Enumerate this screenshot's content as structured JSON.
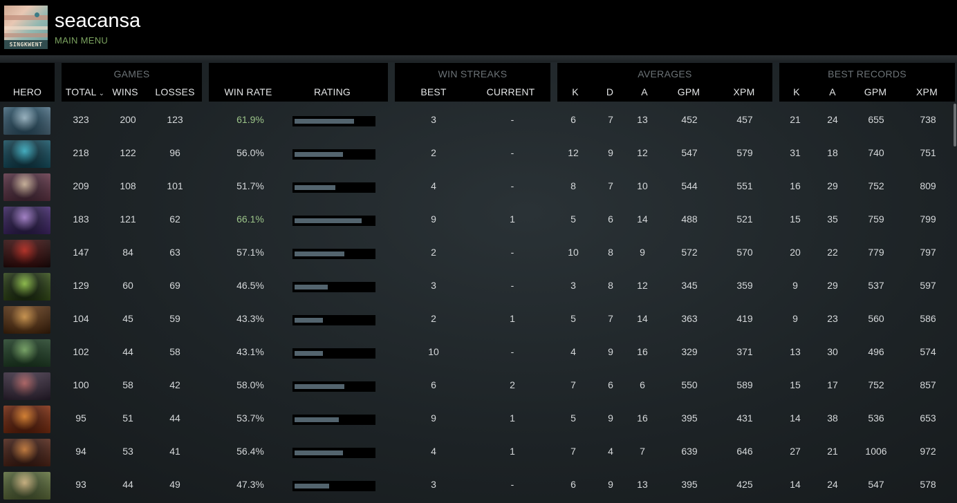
{
  "profile": {
    "username": "seacansa",
    "menu_link": "MAIN MENU",
    "avatar_text": "SINGKWENT"
  },
  "groups": {
    "games": "GAMES",
    "win_streaks": "WIN STREAKS",
    "averages": "AVERAGES",
    "best_records": "BEST RECORDS"
  },
  "headers": {
    "hero": "HERO",
    "total": "TOTAL",
    "wins": "WINS",
    "losses": "LOSSES",
    "win_rate": "WIN RATE",
    "rating": "RATING",
    "streak_best": "BEST",
    "streak_current": "CURRENT",
    "avg_k": "K",
    "avg_d": "D",
    "avg_a": "A",
    "avg_gpm": "GPM",
    "avg_xpm": "XPM",
    "best_k": "K",
    "best_a": "A",
    "best_gpm": "GPM",
    "best_xpm": "XPM"
  },
  "sort": {
    "column": "total",
    "direction": "descending",
    "icon": "chevron-down-icon"
  },
  "colors": {
    "highlight_winrate": "#9cc489",
    "menu_link": "#7ba35f",
    "rating_fill": "#53646e"
  },
  "rows": [
    {
      "hero_icon": "hero-portrait-1",
      "total": "323",
      "wins": "200",
      "losses": "123",
      "win_rate": "61.9%",
      "rating": 0.75,
      "highlight": true,
      "streak_best": "3",
      "streak_current": "-",
      "avg_k": "6",
      "avg_d": "7",
      "avg_a": "13",
      "avg_gpm": "452",
      "avg_xpm": "457",
      "best_k": "21",
      "best_a": "24",
      "best_gpm": "655",
      "best_xpm": "738"
    },
    {
      "hero_icon": "hero-portrait-2",
      "total": "218",
      "wins": "122",
      "losses": "96",
      "win_rate": "56.0%",
      "rating": 0.61,
      "highlight": false,
      "streak_best": "2",
      "streak_current": "-",
      "avg_k": "12",
      "avg_d": "9",
      "avg_a": "12",
      "avg_gpm": "547",
      "avg_xpm": "579",
      "best_k": "31",
      "best_a": "18",
      "best_gpm": "740",
      "best_xpm": "751"
    },
    {
      "hero_icon": "hero-portrait-3",
      "total": "209",
      "wins": "108",
      "losses": "101",
      "win_rate": "51.7%",
      "rating": 0.52,
      "highlight": false,
      "streak_best": "4",
      "streak_current": "-",
      "avg_k": "8",
      "avg_d": "7",
      "avg_a": "10",
      "avg_gpm": "544",
      "avg_xpm": "551",
      "best_k": "16",
      "best_a": "29",
      "best_gpm": "752",
      "best_xpm": "809"
    },
    {
      "hero_icon": "hero-portrait-4",
      "total": "183",
      "wins": "121",
      "losses": "62",
      "win_rate": "66.1%",
      "rating": 0.85,
      "highlight": true,
      "streak_best": "9",
      "streak_current": "1",
      "avg_k": "5",
      "avg_d": "6",
      "avg_a": "14",
      "avg_gpm": "488",
      "avg_xpm": "521",
      "best_k": "15",
      "best_a": "35",
      "best_gpm": "759",
      "best_xpm": "799"
    },
    {
      "hero_icon": "hero-portrait-5",
      "total": "147",
      "wins": "84",
      "losses": "63",
      "win_rate": "57.1%",
      "rating": 0.63,
      "highlight": false,
      "streak_best": "2",
      "streak_current": "-",
      "avg_k": "10",
      "avg_d": "8",
      "avg_a": "9",
      "avg_gpm": "572",
      "avg_xpm": "570",
      "best_k": "20",
      "best_a": "22",
      "best_gpm": "779",
      "best_xpm": "797"
    },
    {
      "hero_icon": "hero-portrait-6",
      "total": "129",
      "wins": "60",
      "losses": "69",
      "win_rate": "46.5%",
      "rating": 0.42,
      "highlight": false,
      "streak_best": "3",
      "streak_current": "-",
      "avg_k": "3",
      "avg_d": "8",
      "avg_a": "12",
      "avg_gpm": "345",
      "avg_xpm": "359",
      "best_k": "9",
      "best_a": "29",
      "best_gpm": "537",
      "best_xpm": "597"
    },
    {
      "hero_icon": "hero-portrait-7",
      "total": "104",
      "wins": "45",
      "losses": "59",
      "win_rate": "43.3%",
      "rating": 0.36,
      "highlight": false,
      "streak_best": "2",
      "streak_current": "1",
      "avg_k": "5",
      "avg_d": "7",
      "avg_a": "14",
      "avg_gpm": "363",
      "avg_xpm": "419",
      "best_k": "9",
      "best_a": "23",
      "best_gpm": "560",
      "best_xpm": "586"
    },
    {
      "hero_icon": "hero-portrait-8",
      "total": "102",
      "wins": "44",
      "losses": "58",
      "win_rate": "43.1%",
      "rating": 0.36,
      "highlight": false,
      "streak_best": "10",
      "streak_current": "-",
      "avg_k": "4",
      "avg_d": "9",
      "avg_a": "16",
      "avg_gpm": "329",
      "avg_xpm": "371",
      "best_k": "13",
      "best_a": "30",
      "best_gpm": "496",
      "best_xpm": "574"
    },
    {
      "hero_icon": "hero-portrait-9",
      "total": "100",
      "wins": "58",
      "losses": "42",
      "win_rate": "58.0%",
      "rating": 0.63,
      "highlight": false,
      "streak_best": "6",
      "streak_current": "2",
      "avg_k": "7",
      "avg_d": "6",
      "avg_a": "6",
      "avg_gpm": "550",
      "avg_xpm": "589",
      "best_k": "15",
      "best_a": "17",
      "best_gpm": "752",
      "best_xpm": "857"
    },
    {
      "hero_icon": "hero-portrait-10",
      "total": "95",
      "wins": "51",
      "losses": "44",
      "win_rate": "53.7%",
      "rating": 0.56,
      "highlight": false,
      "streak_best": "9",
      "streak_current": "1",
      "avg_k": "5",
      "avg_d": "9",
      "avg_a": "16",
      "avg_gpm": "395",
      "avg_xpm": "431",
      "best_k": "14",
      "best_a": "38",
      "best_gpm": "536",
      "best_xpm": "653"
    },
    {
      "hero_icon": "hero-portrait-11",
      "total": "94",
      "wins": "53",
      "losses": "41",
      "win_rate": "56.4%",
      "rating": 0.61,
      "highlight": false,
      "streak_best": "4",
      "streak_current": "1",
      "avg_k": "7",
      "avg_d": "4",
      "avg_a": "7",
      "avg_gpm": "639",
      "avg_xpm": "646",
      "best_k": "27",
      "best_a": "21",
      "best_gpm": "1006",
      "best_xpm": "972"
    },
    {
      "hero_icon": "hero-portrait-12",
      "total": "93",
      "wins": "44",
      "losses": "49",
      "win_rate": "47.3%",
      "rating": 0.44,
      "highlight": false,
      "streak_best": "3",
      "streak_current": "-",
      "avg_k": "6",
      "avg_d": "9",
      "avg_a": "13",
      "avg_gpm": "395",
      "avg_xpm": "425",
      "best_k": "14",
      "best_a": "24",
      "best_gpm": "547",
      "best_xpm": "578"
    }
  ]
}
